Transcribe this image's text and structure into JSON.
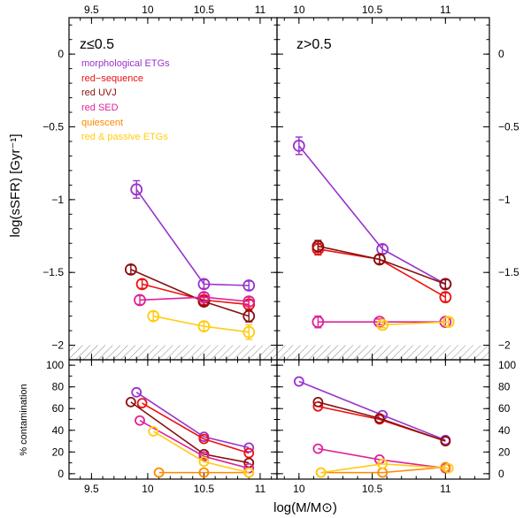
{
  "figure": {
    "xlabel": "log(M/M⊙)",
    "ylabel_top": "log(sSFR)  [Gyr⁻¹]",
    "ylabel_bottom": "% contamination",
    "xticks_left_label": [
      "9.5",
      "10",
      "10.5",
      "11"
    ],
    "xticks_right_label": [
      "10",
      "10.5",
      "11"
    ],
    "yticks_top_label": [
      "0",
      "−0.5",
      "−1",
      "−1.5",
      "−2"
    ],
    "yticks_bottom_label": [
      "0",
      "20",
      "40",
      "60",
      "80",
      "100"
    ]
  },
  "legend": [
    {
      "label": "morphological ETGs",
      "color": "#9933cc"
    },
    {
      "label": "red−sequence",
      "color": "#ee1111"
    },
    {
      "label": "red UVJ",
      "color": "#881111"
    },
    {
      "label": "red SED",
      "color": "#dd2299"
    },
    {
      "label": "quiescent",
      "color": "#ff8800"
    },
    {
      "label": "red & passive ETGs",
      "color": "#ffcc11"
    }
  ],
  "chart_data": [
    {
      "type": "line",
      "panel": "top-left",
      "title": "z≤0.5",
      "xlim": [
        9.3,
        11.15
      ],
      "ylim": [
        -2.1,
        0.25
      ],
      "hatched_below": -2.0,
      "series": [
        {
          "name": "morphological ETGs",
          "color": "#9933cc",
          "x": [
            9.9,
            10.5,
            10.9
          ],
          "y": [
            -0.93,
            -1.58,
            -1.59
          ],
          "err": [
            0.06,
            0.03,
            0.03
          ]
        },
        {
          "name": "red−sequence",
          "color": "#ee1111",
          "x": [
            9.95,
            10.5,
            10.9
          ],
          "y": [
            -1.58,
            -1.69,
            -1.72
          ],
          "err": [
            0.03,
            0.03,
            0.03
          ]
        },
        {
          "name": "red UVJ",
          "color": "#881111",
          "x": [
            9.85,
            10.5,
            10.9
          ],
          "y": [
            -1.48,
            -1.7,
            -1.8
          ],
          "err": [
            0.03,
            0.03,
            0.04
          ]
        },
        {
          "name": "red SED",
          "color": "#dd2299",
          "x": [
            9.93,
            10.5,
            10.9
          ],
          "y": [
            -1.69,
            -1.67,
            -1.7
          ],
          "err": [
            0.03,
            0.03,
            0.03
          ]
        },
        {
          "name": "red & passive ETGs",
          "color": "#ffcc11",
          "x": [
            10.05,
            10.5,
            10.9
          ],
          "y": [
            -1.8,
            -1.87,
            -1.91
          ],
          "err": [
            0.03,
            0.03,
            0.05
          ]
        }
      ]
    },
    {
      "type": "line",
      "panel": "top-right",
      "title": "z>0.5",
      "xlim": [
        9.85,
        11.3
      ],
      "ylim": [
        -2.1,
        0.25
      ],
      "hatched_below": -2.0,
      "series": [
        {
          "name": "morphological ETGs",
          "color": "#9933cc",
          "x": [
            10.0,
            10.57,
            11.0
          ],
          "y": [
            -0.63,
            -1.34,
            -1.58
          ],
          "err": [
            0.06,
            0.03,
            0.03
          ]
        },
        {
          "name": "red−sequence",
          "color": "#ee1111",
          "x": [
            10.13,
            10.55,
            11.0
          ],
          "y": [
            -1.34,
            -1.41,
            -1.67
          ],
          "err": [
            0.04,
            0.03,
            0.03
          ]
        },
        {
          "name": "red UVJ",
          "color": "#881111",
          "x": [
            10.13,
            10.55,
            11.0
          ],
          "y": [
            -1.32,
            -1.41,
            -1.58
          ],
          "err": [
            0.04,
            0.03,
            0.03
          ]
        },
        {
          "name": "red SED",
          "color": "#dd2299",
          "x": [
            10.13,
            10.55,
            11.0
          ],
          "y": [
            -1.84,
            -1.84,
            -1.84
          ],
          "err": [
            0.04,
            0.02,
            0.03
          ]
        },
        {
          "name": "red & passive ETGs",
          "color": "#ffcc11",
          "x": [
            10.57,
            11.02
          ],
          "y": [
            -1.86,
            -1.84
          ],
          "err": [
            0.02,
            0.03
          ]
        }
      ]
    },
    {
      "type": "line",
      "panel": "bottom-left",
      "title": "",
      "xlim": [
        9.3,
        11.15
      ],
      "ylim": [
        -5,
        105
      ],
      "series": [
        {
          "name": "morphological ETGs",
          "color": "#9933cc",
          "x": [
            9.9,
            10.5,
            10.9
          ],
          "y": [
            75,
            34,
            24
          ]
        },
        {
          "name": "red−sequence",
          "color": "#ee1111",
          "x": [
            9.95,
            10.5,
            10.9
          ],
          "y": [
            65,
            32,
            19
          ]
        },
        {
          "name": "red UVJ",
          "color": "#881111",
          "x": [
            9.85,
            10.5,
            10.9
          ],
          "y": [
            66,
            18,
            10
          ]
        },
        {
          "name": "red SED",
          "color": "#dd2299",
          "x": [
            9.93,
            10.5,
            10.9
          ],
          "y": [
            49,
            16,
            5
          ]
        },
        {
          "name": "quiescent",
          "color": "#ff8800",
          "x": [
            10.1,
            10.5,
            10.9
          ],
          "y": [
            1,
            1,
            1
          ]
        },
        {
          "name": "red & passive ETGs",
          "color": "#ffcc11",
          "x": [
            10.05,
            10.5,
            10.9
          ],
          "y": [
            39,
            11,
            1
          ]
        }
      ]
    },
    {
      "type": "line",
      "panel": "bottom-right",
      "title": "",
      "xlim": [
        9.85,
        11.3
      ],
      "ylim": [
        -5,
        105
      ],
      "series": [
        {
          "name": "morphological ETGs",
          "color": "#9933cc",
          "x": [
            10.0,
            10.57,
            11.0
          ],
          "y": [
            85,
            54,
            31
          ]
        },
        {
          "name": "red−sequence",
          "color": "#ee1111",
          "x": [
            10.13,
            10.55,
            11.0
          ],
          "y": [
            62,
            50,
            30
          ]
        },
        {
          "name": "red UVJ",
          "color": "#881111",
          "x": [
            10.13,
            10.55,
            11.0
          ],
          "y": [
            66,
            51,
            30
          ]
        },
        {
          "name": "red SED",
          "color": "#dd2299",
          "x": [
            10.13,
            10.55,
            11.0
          ],
          "y": [
            23,
            13,
            5
          ]
        },
        {
          "name": "quiescent",
          "color": "#ff8800",
          "x": [
            10.15,
            10.57,
            11.0
          ],
          "y": [
            1,
            1,
            6
          ]
        },
        {
          "name": "red & passive ETGs",
          "color": "#ffcc11",
          "x": [
            10.15,
            10.57,
            11.02
          ],
          "y": [
            1,
            9,
            5
          ]
        }
      ]
    }
  ]
}
